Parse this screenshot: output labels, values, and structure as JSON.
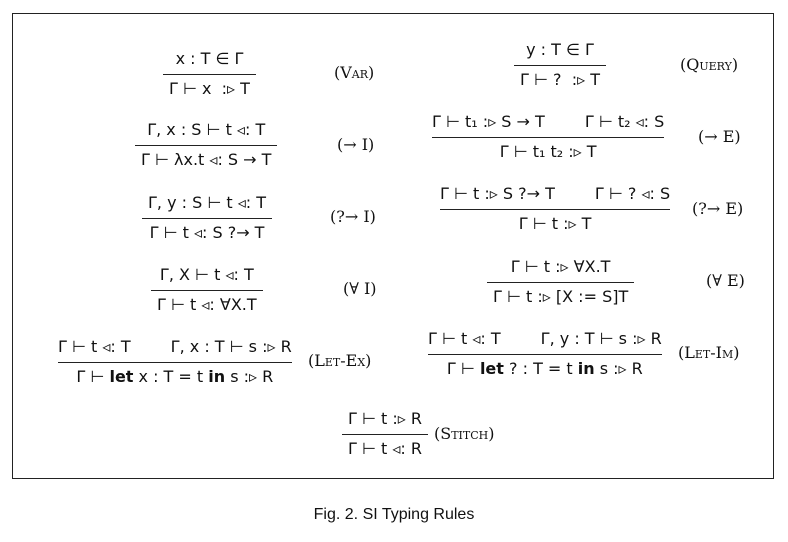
{
  "caption": "Fig. 2. SI Typing Rules",
  "rules": {
    "var": {
      "premise": "x : T ∈ Γ",
      "conclusion": "Γ ⊢ x  :▹ T",
      "label": "(Var)"
    },
    "query": {
      "premise": "y : T ∈ Γ",
      "conclusion": "Γ ⊢ ?  :▹ T",
      "label": "(Query)"
    },
    "arr_i": {
      "premise": "Γ, x : S ⊢ t ◃: T",
      "conclusion": "Γ ⊢ λx.t ◃: S → T",
      "label": "(→ I)"
    },
    "arr_e": {
      "premise1": "Γ ⊢ t₁ :▹ S → T",
      "premise2": "Γ ⊢ t₂ ◃: S",
      "conclusion": "Γ ⊢ t₁ t₂ :▹ T",
      "label": "(→ E)"
    },
    "qarr_i": {
      "premise": "Γ, y : S ⊢ t ◃: T",
      "conclusion": "Γ ⊢ t ◃: S ?→ T",
      "label": "(?→ I)"
    },
    "qarr_e": {
      "premise1": "Γ ⊢ t :▹ S ?→ T",
      "premise2": "Γ ⊢ ? ◃: S",
      "conclusion": "Γ ⊢ t :▹ T",
      "label": "(?→ E)"
    },
    "all_i": {
      "premise": "Γ, X ⊢ t ◃: T",
      "conclusion": "Γ ⊢ t ◃: ∀X.T",
      "label": "(∀ I)"
    },
    "all_e": {
      "premise": "Γ ⊢ t :▹ ∀X.T",
      "conclusion": "Γ ⊢ t :▹ [X := S]T",
      "label": "(∀ E)"
    },
    "let_ex": {
      "premise1": "Γ ⊢ t ◃: T",
      "premise2": "Γ, x : T ⊢ s :▹ R",
      "conclusion_pre": "Γ ⊢ ",
      "kw_let": "let",
      "conclusion_mid": " x : T = t ",
      "kw_in": "in",
      "conclusion_post": " s :▹ R",
      "label": "(Let-Ex)"
    },
    "let_im": {
      "premise1": "Γ ⊢ t ◃: T",
      "premise2": "Γ, y : T ⊢ s :▹ R",
      "conclusion_pre": "Γ ⊢ ",
      "kw_let": "let",
      "conclusion_mid": " ? : T = t ",
      "kw_in": "in",
      "conclusion_post": " s :▹ R",
      "label": "(Let-Im)"
    },
    "stitch": {
      "premise": "Γ ⊢ t :▹ R",
      "conclusion": "Γ ⊢ t ◃: R",
      "label": "(Stitch)"
    }
  }
}
